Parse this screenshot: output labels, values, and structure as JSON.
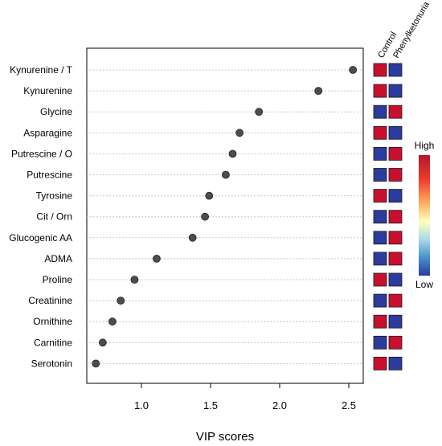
{
  "chart_data": {
    "type": "scatter",
    "subtype": "vip-dot-plot",
    "xlabel": "VIP scores",
    "ylabel": "",
    "title": "",
    "xlim": [
      0.6,
      2.6
    ],
    "xticks": [
      "1.0",
      "1.5",
      "2.0",
      "2.5"
    ],
    "xtick_values": [
      1.0,
      1.5,
      2.0,
      2.5
    ],
    "grid": "horizontal dotted lines per feature",
    "marker_color": "#4d4d4d",
    "features": [
      "Kynurenine / T",
      "Kynurenine",
      "Glycine",
      "Asparagine",
      "Putrescine / O",
      "Putrescine",
      "Tyrosine",
      "Cit / Orn",
      "Glucogenic AA",
      "ADMA",
      "Proline",
      "Creatinine",
      "Ornithine",
      "Carnitine",
      "Serotonin"
    ],
    "values": [
      2.53,
      2.28,
      1.85,
      1.71,
      1.66,
      1.61,
      1.49,
      1.46,
      1.37,
      1.11,
      0.95,
      0.85,
      0.79,
      0.72,
      0.67
    ],
    "groups": [
      "Control",
      "Phenylketonuria"
    ],
    "heatmap": [
      [
        "high",
        "low"
      ],
      [
        "high",
        "low"
      ],
      [
        "low",
        "high"
      ],
      [
        "high",
        "low"
      ],
      [
        "low",
        "high"
      ],
      [
        "low",
        "high"
      ],
      [
        "high",
        "low"
      ],
      [
        "low",
        "high"
      ],
      [
        "low",
        "high"
      ],
      [
        "low",
        "high"
      ],
      [
        "high",
        "low"
      ],
      [
        "low",
        "high"
      ],
      [
        "high",
        "low"
      ],
      [
        "low",
        "high"
      ],
      [
        "high",
        "low"
      ]
    ],
    "colors": {
      "high": "#c8102e",
      "low": "#2b3b9e"
    },
    "legend": {
      "high_label": "High",
      "low_label": "Low",
      "placement": "right"
    }
  }
}
